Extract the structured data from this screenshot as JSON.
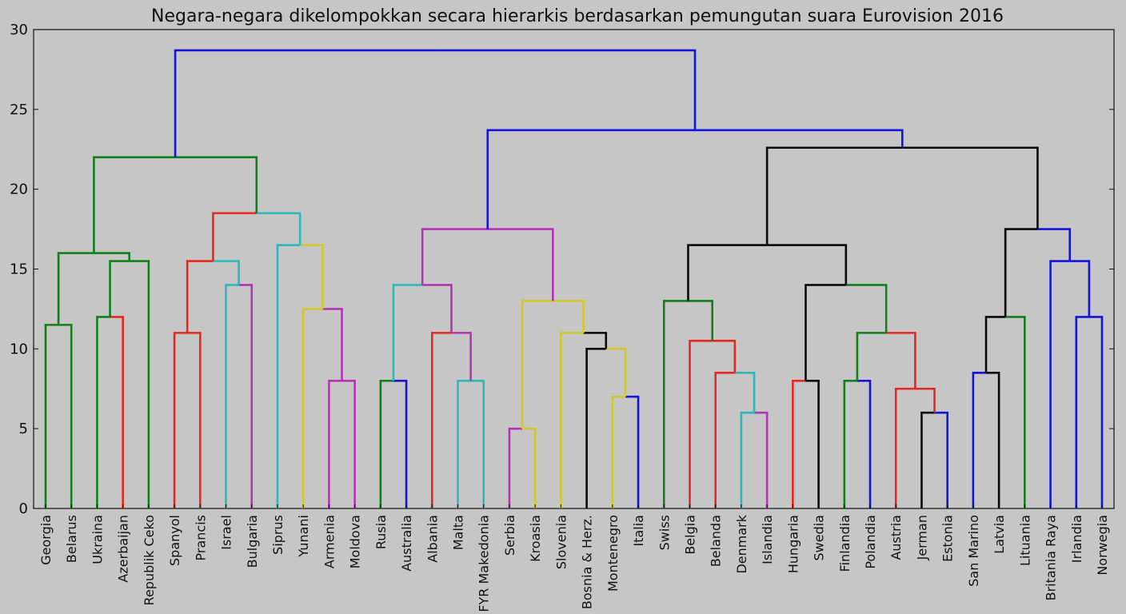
{
  "chart_data": {
    "type": "dendrogram",
    "title": "Negara-negara dikelompokkan secara hierarkis berdasarkan pemungutan suara Eurovision 2016",
    "xlabel": "",
    "ylabel": "",
    "ylim": [
      0,
      30
    ],
    "yticks": [
      "0",
      "5",
      "10",
      "15",
      "20",
      "25",
      "30"
    ],
    "grid": false,
    "leaves": [
      "Georgia",
      "Belarus",
      "Ukraina",
      "Azerbaijan",
      "Republik Ceko",
      "Spanyol",
      "Prancis",
      "Israel",
      "Bulgaria",
      "Siprus",
      "Yunani",
      "Armenia",
      "Moldova",
      "Rusia",
      "Australia",
      "Albania",
      "Malta",
      "FYR Makedonia",
      "Serbia",
      "Kroasia",
      "Slovenia",
      "Bosnia & Herz.",
      "Montenegro",
      "Italia",
      "Swiss",
      "Belgia",
      "Belanda",
      "Denmark",
      "Islandia",
      "Hungaria",
      "Swedia",
      "Finlandia",
      "Polandia",
      "Austria",
      "Jerman",
      "Estonia",
      "San Marino",
      "Latvia",
      "Lituania",
      "Britania Raya",
      "Irlandia",
      "Norwegia"
    ],
    "colors": {
      "green": "#12801a",
      "red": "#e8281e",
      "cyan": "#2cb8b8",
      "magenta": "#b236b4",
      "yellow": "#d2c92c",
      "blue": "#1414dc",
      "black": "#0a0a0a"
    },
    "links": [
      {
        "a": "Georgia",
        "b": "Belarus",
        "h": 11.5,
        "ca": "green",
        "cb": "green"
      },
      {
        "a": "Ukraina",
        "b": "Azerbaijan",
        "h": 12,
        "ca": "green",
        "cb": "red"
      },
      {
        "a": 1,
        "b": "Republik Ceko",
        "h": 15.5,
        "ca": "green",
        "cb": "green"
      },
      {
        "a": 0,
        "b": 2,
        "h": 16,
        "ca": "green",
        "cb": "green"
      },
      {
        "a": "Spanyol",
        "b": "Prancis",
        "h": 11,
        "ca": "red",
        "cb": "red"
      },
      {
        "a": "Israel",
        "b": "Bulgaria",
        "h": 14,
        "ca": "cyan",
        "cb": "magenta"
      },
      {
        "a": 4,
        "b": 5,
        "h": 15.5,
        "ca": "red",
        "cb": "cyan"
      },
      {
        "a": "Armenia",
        "b": "Moldova",
        "h": 8,
        "ca": "magenta",
        "cb": "magenta"
      },
      {
        "a": "Yunani",
        "b": 7,
        "h": 12.5,
        "ca": "yellow",
        "cb": "magenta"
      },
      {
        "a": "Siprus",
        "b": 8,
        "h": 16.5,
        "ca": "cyan",
        "cb": "yellow"
      },
      {
        "a": 6,
        "b": 9,
        "h": 18.5,
        "ca": "red",
        "cb": "cyan"
      },
      {
        "a": 3,
        "b": 10,
        "h": 22,
        "ca": "green",
        "cb": "green"
      },
      {
        "a": "Rusia",
        "b": "Australia",
        "h": 8,
        "ca": "green",
        "cb": "blue"
      },
      {
        "a": "Malta",
        "b": "FYR Makedonia",
        "h": 8,
        "ca": "cyan",
        "cb": "cyan"
      },
      {
        "a": "Albania",
        "b": 13,
        "h": 11,
        "ca": "red",
        "cb": "magenta"
      },
      {
        "a": 12,
        "b": 14,
        "h": 14,
        "ca": "cyan",
        "cb": "magenta"
      },
      {
        "a": "Serbia",
        "b": "Kroasia",
        "h": 5,
        "ca": "magenta",
        "cb": "yellow"
      },
      {
        "a": "Montenegro",
        "b": "Italia",
        "h": 7,
        "ca": "yellow",
        "cb": "blue"
      },
      {
        "a": "Bosnia & Herz.",
        "b": 17,
        "h": 10,
        "ca": "black",
        "cb": "yellow"
      },
      {
        "a": "Slovenia",
        "b": 18,
        "h": 11,
        "ca": "yellow",
        "cb": "black"
      },
      {
        "a": 16,
        "b": 19,
        "h": 13,
        "ca": "yellow",
        "cb": "yellow"
      },
      {
        "a": 15,
        "b": 20,
        "h": 17.5,
        "ca": "magenta",
        "cb": "magenta"
      },
      {
        "a": "Denmark",
        "b": "Islandia",
        "h": 6,
        "ca": "cyan",
        "cb": "magenta"
      },
      {
        "a": "Belanda",
        "b": 22,
        "h": 8.5,
        "ca": "red",
        "cb": "cyan"
      },
      {
        "a": "Belgia",
        "b": 23,
        "h": 10.5,
        "ca": "red",
        "cb": "red"
      },
      {
        "a": "Swiss",
        "b": 24,
        "h": 13,
        "ca": "green",
        "cb": "green"
      },
      {
        "a": "Hungaria",
        "b": "Swedia",
        "h": 8,
        "ca": "red",
        "cb": "black"
      },
      {
        "a": "Finlandia",
        "b": "Polandia",
        "h": 8,
        "ca": "green",
        "cb": "blue"
      },
      {
        "a": "Jerman",
        "b": "Estonia",
        "h": 6,
        "ca": "black",
        "cb": "blue"
      },
      {
        "a": "Austria",
        "b": 28,
        "h": 7.5,
        "ca": "red",
        "cb": "red"
      },
      {
        "a": 27,
        "b": 29,
        "h": 11,
        "ca": "green",
        "cb": "red"
      },
      {
        "a": 26,
        "b": 30,
        "h": 14,
        "ca": "black",
        "cb": "green"
      },
      {
        "a": 25,
        "b": 31,
        "h": 16.5,
        "ca": "black",
        "cb": "black"
      },
      {
        "a": "San Marino",
        "b": "Latvia",
        "h": 8.5,
        "ca": "blue",
        "cb": "black"
      },
      {
        "a": 33,
        "b": "Lituania",
        "h": 12,
        "ca": "black",
        "cb": "green"
      },
      {
        "a": "Irlandia",
        "b": "Norwegia",
        "h": 12,
        "ca": "blue",
        "cb": "blue"
      },
      {
        "a": "Britania Raya",
        "b": 35,
        "h": 15.5,
        "ca": "blue",
        "cb": "blue"
      },
      {
        "a": 34,
        "b": 36,
        "h": 17.5,
        "ca": "black",
        "cb": "blue"
      },
      {
        "a": 32,
        "b": 37,
        "h": 22.6,
        "ca": "black",
        "cb": "black"
      },
      {
        "a": 21,
        "b": 38,
        "h": 23.7,
        "ca": "blue",
        "cb": "blue"
      },
      {
        "a": 11,
        "b": 39,
        "h": 28.7,
        "ca": "blue",
        "cb": "blue"
      }
    ]
  }
}
